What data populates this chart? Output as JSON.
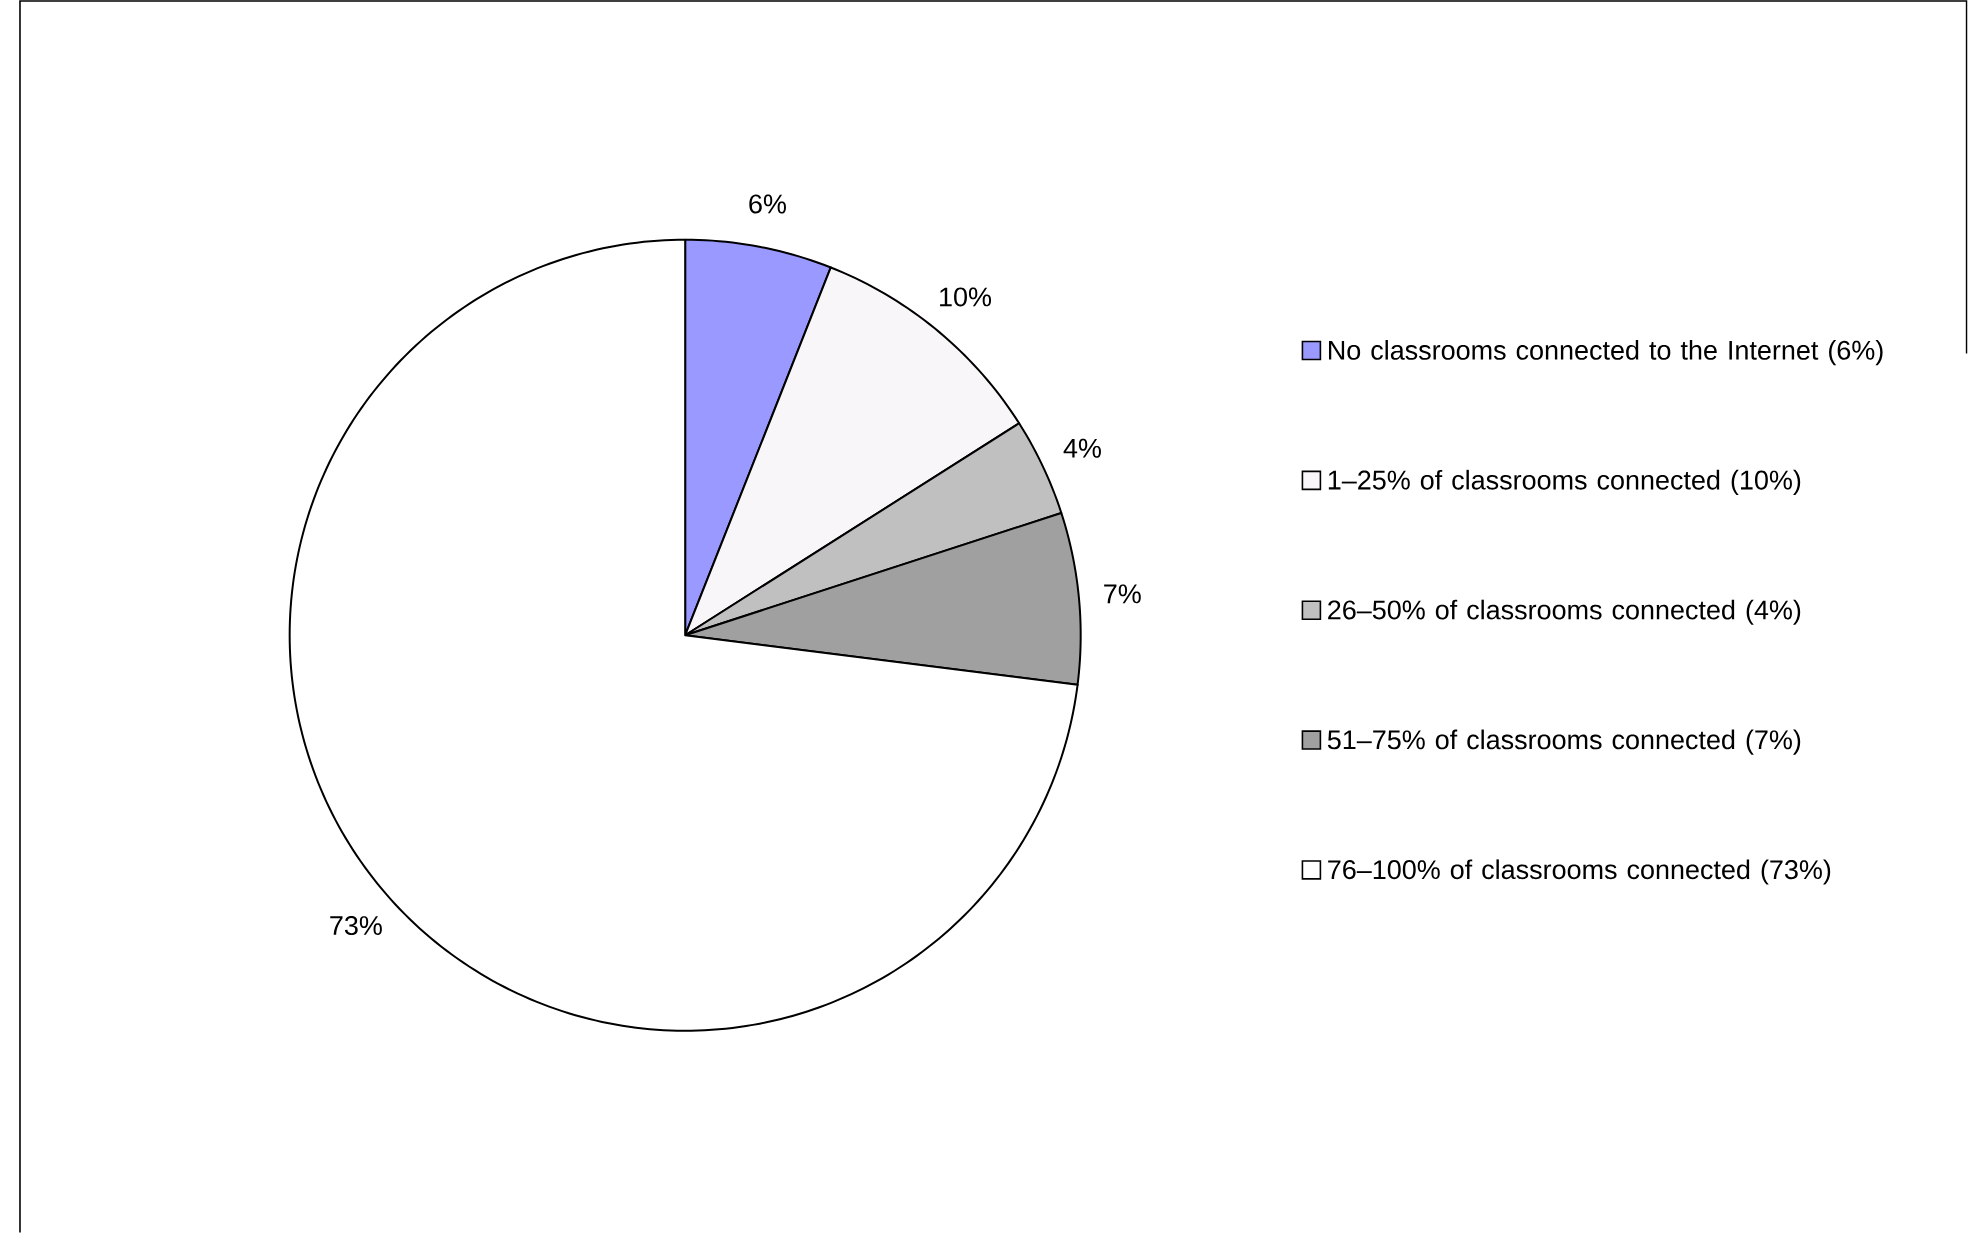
{
  "chart_data": {
    "type": "pie",
    "categories": [
      "No classrooms connected to the Internet (6%)",
      "1–25% of classrooms connected (10%)",
      "26–50% of classrooms connected (4%)",
      "51–75% of classrooms connected (7%)",
      "76–100% of classrooms connected (73%)"
    ],
    "values": [
      6,
      10,
      4,
      7,
      73
    ],
    "value_labels": [
      "6%",
      "10%",
      "4%",
      "7%",
      "73%"
    ],
    "colors": [
      "#9999ff",
      "#f8f6f8",
      "#c0c0c0",
      "#a0a0a0",
      "#ffffff"
    ],
    "legend": "right"
  }
}
